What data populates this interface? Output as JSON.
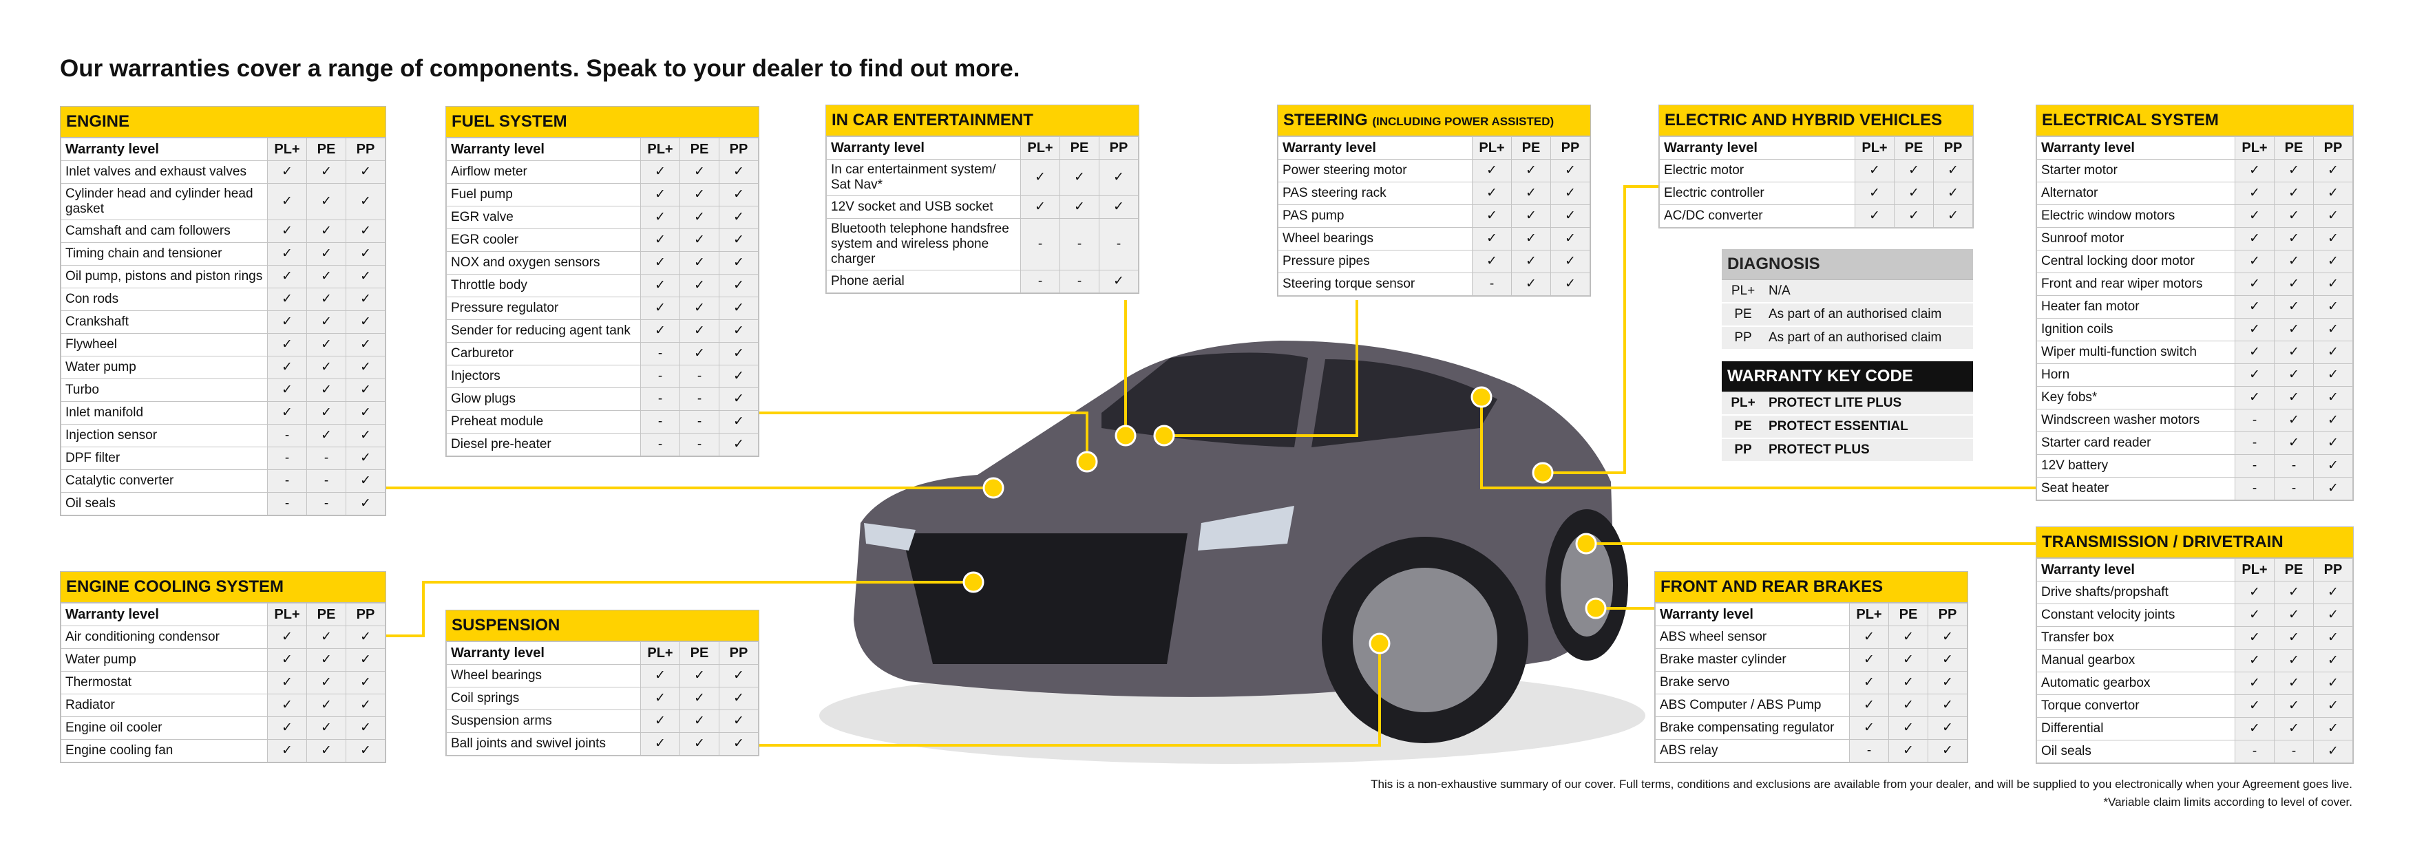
{
  "title": "Our warranties cover a range of components. Speak to your dealer to find out more.",
  "tables": [
    {
      "title": "ENGINE",
      "header": [
        "Warranty level",
        "PL+",
        "PE",
        "PP"
      ],
      "rows": [
        [
          "Inlet valves and exhaust valves",
          "✓",
          "✓",
          "✓"
        ],
        [
          "Cylinder head and cylinder head gasket",
          "✓",
          "✓",
          "✓"
        ],
        [
          "Camshaft and cam followers",
          "✓",
          "✓",
          "✓"
        ],
        [
          "Timing chain and tensioner",
          "✓",
          "✓",
          "✓"
        ],
        [
          "Oil pump, pistons and piston rings",
          "✓",
          "✓",
          "✓"
        ],
        [
          "Con rods",
          "✓",
          "✓",
          "✓"
        ],
        [
          "Crankshaft",
          "✓",
          "✓",
          "✓"
        ],
        [
          "Flywheel",
          "✓",
          "✓",
          "✓"
        ],
        [
          "Water pump",
          "✓",
          "✓",
          "✓"
        ],
        [
          "Turbo",
          "✓",
          "✓",
          "✓"
        ],
        [
          "Inlet manifold",
          "✓",
          "✓",
          "✓"
        ],
        [
          "Injection sensor",
          "-",
          "✓",
          "✓"
        ],
        [
          "DPF filter",
          "-",
          "-",
          "✓"
        ],
        [
          "Catalytic converter",
          "-",
          "-",
          "✓"
        ],
        [
          "Oil seals",
          "-",
          "-",
          "✓"
        ]
      ]
    },
    {
      "title": "ENGINE COOLING SYSTEM",
      "header": [
        "Warranty level",
        "PL+",
        "PE",
        "PP"
      ],
      "rows": [
        [
          "Air conditioning condensor",
          "✓",
          "✓",
          "✓"
        ],
        [
          "Water pump",
          "✓",
          "✓",
          "✓"
        ],
        [
          "Thermostat",
          "✓",
          "✓",
          "✓"
        ],
        [
          "Radiator",
          "✓",
          "✓",
          "✓"
        ],
        [
          "Engine oil cooler",
          "✓",
          "✓",
          "✓"
        ],
        [
          "Engine cooling fan",
          "✓",
          "✓",
          "✓"
        ]
      ]
    },
    {
      "title": "FUEL SYSTEM",
      "header": [
        "Warranty level",
        "PL+",
        "PE",
        "PP"
      ],
      "rows": [
        [
          "Airflow meter",
          "✓",
          "✓",
          "✓"
        ],
        [
          "Fuel pump",
          "✓",
          "✓",
          "✓"
        ],
        [
          "EGR valve",
          "✓",
          "✓",
          "✓"
        ],
        [
          "EGR cooler",
          "✓",
          "✓",
          "✓"
        ],
        [
          "NOX and oxygen sensors",
          "✓",
          "✓",
          "✓"
        ],
        [
          "Throttle body",
          "✓",
          "✓",
          "✓"
        ],
        [
          "Pressure regulator",
          "✓",
          "✓",
          "✓"
        ],
        [
          "Sender for reducing agent tank",
          "✓",
          "✓",
          "✓"
        ],
        [
          "Carburetor",
          "-",
          "✓",
          "✓"
        ],
        [
          "Injectors",
          "-",
          "-",
          "✓"
        ],
        [
          "Glow plugs",
          "-",
          "-",
          "✓"
        ],
        [
          "Preheat module",
          "-",
          "-",
          "✓"
        ],
        [
          "Diesel pre-heater",
          "-",
          "-",
          "✓"
        ]
      ]
    },
    {
      "title": "SUSPENSION",
      "header": [
        "Warranty level",
        "PL+",
        "PE",
        "PP"
      ],
      "rows": [
        [
          "Wheel bearings",
          "✓",
          "✓",
          "✓"
        ],
        [
          "Coil springs",
          "✓",
          "✓",
          "✓"
        ],
        [
          "Suspension arms",
          "✓",
          "✓",
          "✓"
        ],
        [
          "Ball joints and swivel joints",
          "✓",
          "✓",
          "✓"
        ]
      ]
    },
    {
      "title": "IN CAR ENTERTAINMENT",
      "header": [
        "Warranty level",
        "PL+",
        "PE",
        "PP"
      ],
      "rows": [
        [
          "In car entertainment system/ Sat Nav*",
          "✓",
          "✓",
          "✓"
        ],
        [
          "12V socket and USB socket",
          "✓",
          "✓",
          "✓"
        ],
        [
          "Bluetooth telephone handsfree system and wireless phone charger",
          "-",
          "-",
          "-"
        ],
        [
          "Phone aerial",
          "-",
          "-",
          "✓"
        ]
      ]
    },
    {
      "title": "STEERING",
      "subtitle": "(INCLUDING POWER ASSISTED)",
      "header": [
        "Warranty level",
        "PL+",
        "PE",
        "PP"
      ],
      "rows": [
        [
          "Power steering motor",
          "✓",
          "✓",
          "✓"
        ],
        [
          "PAS steering rack",
          "✓",
          "✓",
          "✓"
        ],
        [
          "PAS pump",
          "✓",
          "✓",
          "✓"
        ],
        [
          "Wheel bearings",
          "✓",
          "✓",
          "✓"
        ],
        [
          "Pressure pipes",
          "✓",
          "✓",
          "✓"
        ],
        [
          "Steering torque sensor",
          "-",
          "✓",
          "✓"
        ]
      ]
    },
    {
      "title": "ELECTRIC AND HYBRID VEHICLES",
      "header": [
        "Warranty level",
        "PL+",
        "PE",
        "PP"
      ],
      "rows": [
        [
          "Electric motor",
          "✓",
          "✓",
          "✓"
        ],
        [
          "Electric controller",
          "✓",
          "✓",
          "✓"
        ],
        [
          "AC/DC converter",
          "✓",
          "✓",
          "✓"
        ]
      ]
    },
    {
      "title": "FRONT AND REAR BRAKES",
      "header": [
        "Warranty level",
        "PL+",
        "PE",
        "PP"
      ],
      "rows": [
        [
          "ABS wheel sensor",
          "✓",
          "✓",
          "✓"
        ],
        [
          "Brake master cylinder",
          "✓",
          "✓",
          "✓"
        ],
        [
          "Brake servo",
          "✓",
          "✓",
          "✓"
        ],
        [
          "ABS Computer / ABS Pump",
          "✓",
          "✓",
          "✓"
        ],
        [
          "Brake compensating regulator",
          "✓",
          "✓",
          "✓"
        ],
        [
          "ABS relay",
          "-",
          "✓",
          "✓"
        ]
      ]
    },
    {
      "title": "ELECTRICAL SYSTEM",
      "header": [
        "Warranty level",
        "PL+",
        "PE",
        "PP"
      ],
      "rows": [
        [
          "Starter motor",
          "✓",
          "✓",
          "✓"
        ],
        [
          "Alternator",
          "✓",
          "✓",
          "✓"
        ],
        [
          "Electric window motors",
          "✓",
          "✓",
          "✓"
        ],
        [
          "Sunroof motor",
          "✓",
          "✓",
          "✓"
        ],
        [
          "Central locking door motor",
          "✓",
          "✓",
          "✓"
        ],
        [
          "Front and rear wiper motors",
          "✓",
          "✓",
          "✓"
        ],
        [
          "Heater fan motor",
          "✓",
          "✓",
          "✓"
        ],
        [
          "Ignition coils",
          "✓",
          "✓",
          "✓"
        ],
        [
          "Wiper multi-function switch",
          "✓",
          "✓",
          "✓"
        ],
        [
          "Horn",
          "✓",
          "✓",
          "✓"
        ],
        [
          "Key fobs*",
          "✓",
          "✓",
          "✓"
        ],
        [
          "Windscreen washer motors",
          "-",
          "✓",
          "✓"
        ],
        [
          "Starter card reader",
          "-",
          "✓",
          "✓"
        ],
        [
          "12V battery",
          "-",
          "-",
          "✓"
        ],
        [
          "Seat heater",
          "-",
          "-",
          "✓"
        ]
      ]
    },
    {
      "title": "TRANSMISSION / DRIVETRAIN",
      "header": [
        "Warranty level",
        "PL+",
        "PE",
        "PP"
      ],
      "rows": [
        [
          "Drive shafts/propshaft",
          "✓",
          "✓",
          "✓"
        ],
        [
          "Constant velocity joints",
          "✓",
          "✓",
          "✓"
        ],
        [
          "Transfer box",
          "✓",
          "✓",
          "✓"
        ],
        [
          "Manual gearbox",
          "✓",
          "✓",
          "✓"
        ],
        [
          "Automatic gearbox",
          "✓",
          "✓",
          "✓"
        ],
        [
          "Torque convertor",
          "✓",
          "✓",
          "✓"
        ],
        [
          "Differential",
          "✓",
          "✓",
          "✓"
        ],
        [
          "Oil seals",
          "-",
          "-",
          "✓"
        ]
      ]
    }
  ],
  "diagnosis": {
    "title": "DIAGNOSIS",
    "rows": [
      [
        "PL+",
        "N/A"
      ],
      [
        "PE",
        "As part of an authorised claim"
      ],
      [
        "PP",
        "As part of an authorised claim"
      ]
    ]
  },
  "key_code": {
    "title": "WARRANTY KEY CODE",
    "rows": [
      [
        "PL+",
        "PROTECT LITE PLUS"
      ],
      [
        "PE",
        "PROTECT ESSENTIAL"
      ],
      [
        "PP",
        "PROTECT PLUS"
      ]
    ]
  },
  "footnotes": [
    "This is a non-exhaustive summary of our cover. Full terms, conditions and exclusions are available from your dealer, and will be supplied to you electronically when your Agreement goes live.",
    "*Variable claim limits according to level of cover."
  ]
}
